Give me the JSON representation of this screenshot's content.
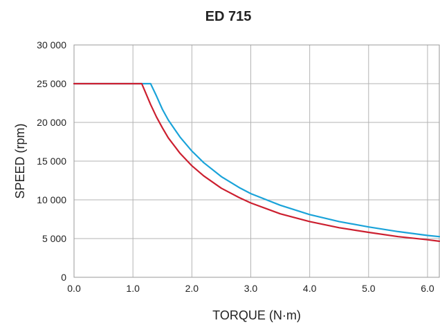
{
  "chart_data": {
    "type": "line",
    "title": "ED 715",
    "xlabel": "TORQUE (N·m)",
    "ylabel": "SPEED (rpm)",
    "xlim": [
      0,
      6.2
    ],
    "ylim": [
      0,
      30000
    ],
    "x_ticks": [
      0,
      1,
      2,
      3,
      4,
      5,
      6
    ],
    "x_tick_labels": [
      "0.0",
      "1.0",
      "2.0",
      "3.0",
      "4.0",
      "5.0",
      "6.0"
    ],
    "y_ticks": [
      0,
      5000,
      10000,
      15000,
      20000,
      25000,
      30000
    ],
    "y_tick_labels": [
      "0",
      "5 000",
      "10 000",
      "15 000",
      "20 000",
      "25 000",
      "30 000"
    ],
    "grid": true,
    "series": [
      {
        "color": "#1aa3d9",
        "x": [
          0,
          1.3,
          1.4,
          1.5,
          1.6,
          1.7,
          1.8,
          2.0,
          2.2,
          2.5,
          2.8,
          3.0,
          3.5,
          4.0,
          4.5,
          5.0,
          5.5,
          6.0,
          6.2
        ],
        "y": [
          25000,
          25000,
          23400,
          21700,
          20300,
          19200,
          18100,
          16300,
          14800,
          13000,
          11600,
          10800,
          9300,
          8100,
          7200,
          6500,
          5900,
          5400,
          5250
        ]
      },
      {
        "color": "#cc1f2f",
        "x": [
          0,
          1.15,
          1.2,
          1.3,
          1.4,
          1.5,
          1.6,
          1.8,
          2.0,
          2.2,
          2.5,
          2.8,
          3.0,
          3.5,
          4.0,
          4.5,
          5.0,
          5.5,
          6.0,
          6.2
        ],
        "y": [
          25000,
          25000,
          24100,
          22300,
          20700,
          19300,
          18000,
          16000,
          14400,
          13100,
          11500,
          10300,
          9600,
          8200,
          7200,
          6400,
          5800,
          5250,
          4850,
          4650
        ]
      }
    ]
  }
}
